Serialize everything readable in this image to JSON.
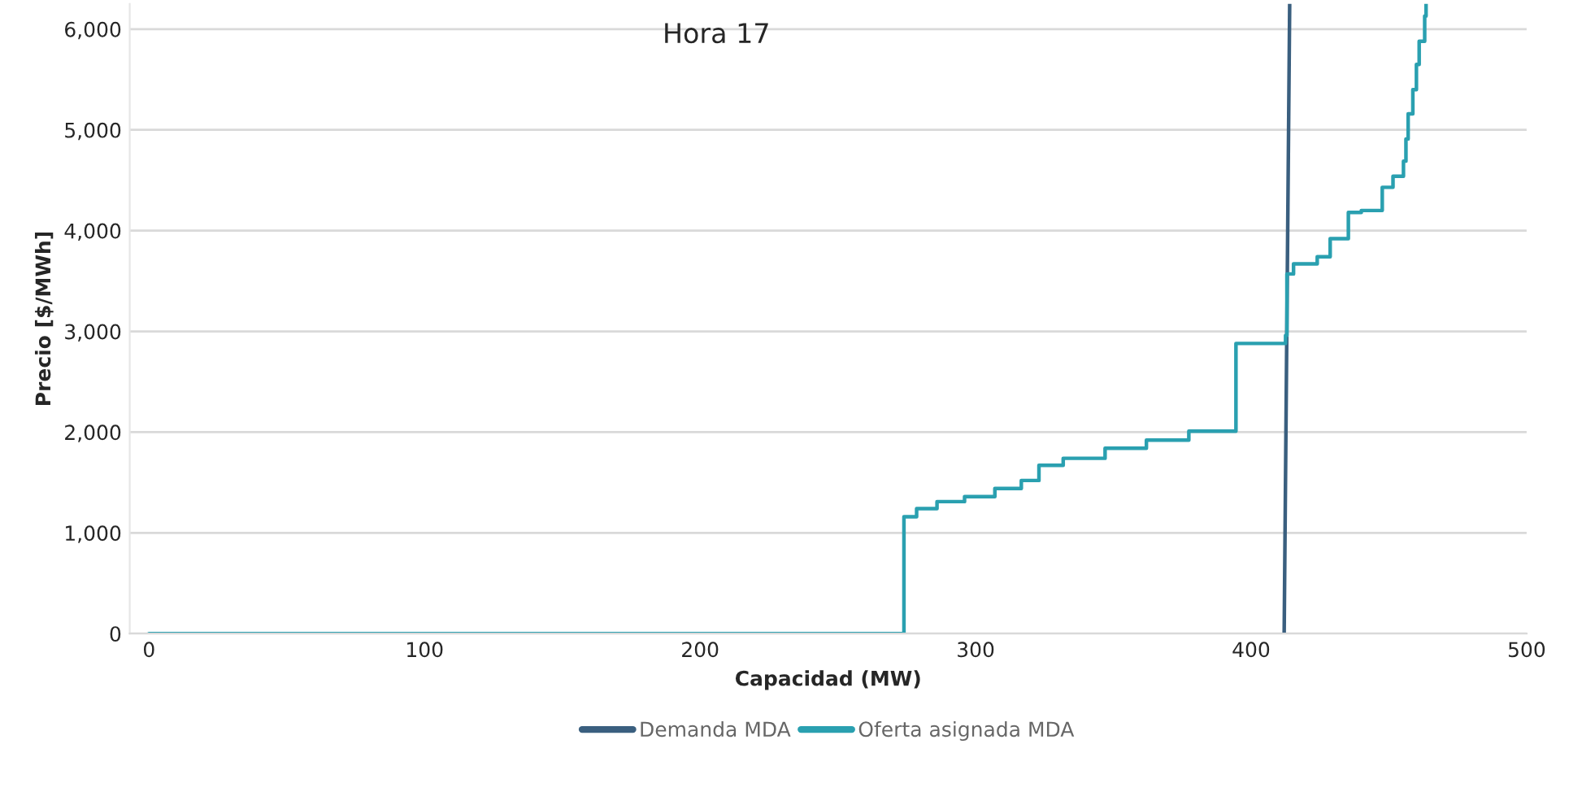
{
  "chart_data": {
    "type": "step",
    "title": "Hora 17",
    "xlabel": "Capacidad (MW)",
    "ylabel": "Precio [$/MWh]",
    "series": [
      {
        "name": "Demanda MDA",
        "color": "#3a5f7f",
        "type": "line",
        "x": [
          412,
          414
        ],
        "values": [
          0,
          6250
        ]
      },
      {
        "name": "Oferta asignada MDA",
        "color": "#2aa0b0",
        "x": [
          0,
          274,
          278.6,
          286,
          296,
          307,
          316.6,
          323,
          331.8,
          347,
          362,
          377.4,
          394.5,
          412.5,
          413,
          415.4,
          421,
          424,
          428.7,
          435.3,
          440,
          447.6,
          451.5,
          455.3,
          456.2,
          457,
          458.7,
          460,
          461,
          463,
          463.5
        ],
        "values": [
          0,
          1160,
          1240,
          1310,
          1360,
          1440,
          1520,
          1670,
          1740,
          1840,
          1920,
          2010,
          2880,
          2960,
          3570,
          3670,
          3670,
          3740,
          3920,
          4180,
          4200,
          4430,
          4540,
          4690,
          4910,
          5160,
          5400,
          5650,
          5880,
          6130,
          6250
        ]
      }
    ],
    "xlim": [
      -7,
      500
    ],
    "xticks": [
      0,
      100,
      200,
      300,
      400,
      500
    ],
    "ylim": [
      0,
      6250
    ],
    "yticks": [
      {
        "value": 0,
        "label": "0"
      },
      {
        "value": 1000,
        "label": "1,000"
      },
      {
        "value": 2000,
        "label": "2,000"
      },
      {
        "value": 3000,
        "label": "3,000"
      },
      {
        "value": 4000,
        "label": "4,000"
      },
      {
        "value": 5000,
        "label": "5,000"
      },
      {
        "value": 6000,
        "label": "6,000"
      }
    ],
    "grid": "y",
    "legend": "bottom"
  }
}
